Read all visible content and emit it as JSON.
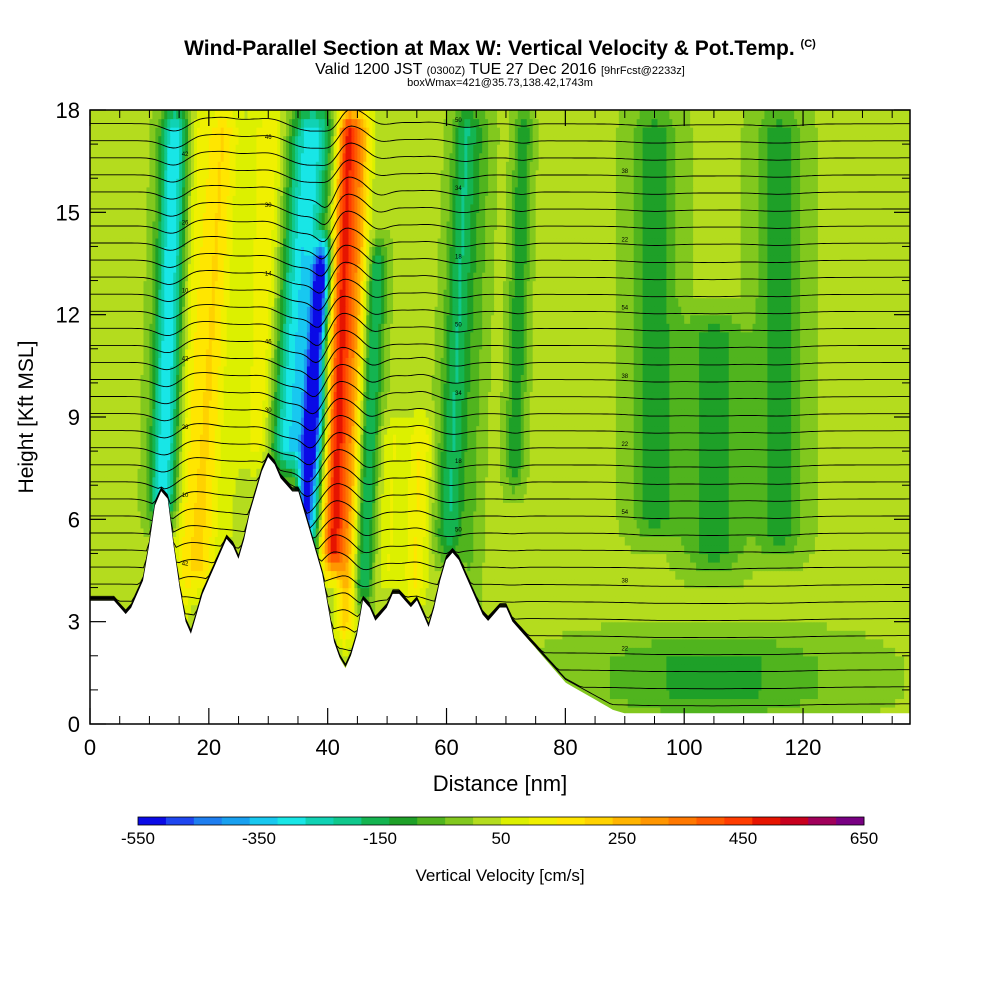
{
  "title": {
    "main": "Wind-Parallel Section at Max W: Vertical Velocity & Pot.Temp.",
    "main_suffix": "(C)",
    "line2_a": "Valid 1200 JST",
    "line2_b": "(0300Z)",
    "line2_c": "TUE 27 Dec 2016",
    "line2_d": "[9hrFcst@2233z]",
    "line3": "boxWmax=421@35.73,138.42,1743m"
  },
  "chart_data": {
    "type": "heatmap",
    "xlabel": "Distance [nm]",
    "ylabel": "Height [Kft MSL]",
    "xlim": [
      0,
      138
    ],
    "ylim": [
      0,
      18
    ],
    "x_ticks": [
      "0",
      "20",
      "40",
      "60",
      "80",
      "100",
      "120"
    ],
    "y_ticks": [
      "0",
      "3",
      "6",
      "9",
      "12",
      "15",
      "18"
    ],
    "colorbar": {
      "label": "Vertical Velocity [cm/s]",
      "tick_labels": [
        "-550",
        "-350",
        "-150",
        "50",
        "250",
        "450",
        "650"
      ],
      "min": -550,
      "max": 650,
      "step": 50,
      "colors": [
        "#0a0ae6",
        "#1e46f0",
        "#1e7ef0",
        "#18a0f0",
        "#18c8f0",
        "#18e6e6",
        "#10d2b4",
        "#10c88c",
        "#14b450",
        "#1ea028",
        "#50b41e",
        "#82c81e",
        "#b4dc1e",
        "#dcf000",
        "#f0f000",
        "#ffe600",
        "#ffd200",
        "#ffb400",
        "#ff9600",
        "#ff7800",
        "#ff5a00",
        "#ff3c00",
        "#e61400",
        "#c8001e",
        "#a0005a",
        "#780082"
      ]
    },
    "terrain_profile": {
      "x": [
        0,
        4,
        5,
        6,
        7,
        8,
        9,
        10,
        11,
        12,
        13,
        14,
        15,
        16,
        17,
        18,
        19,
        20,
        21,
        22,
        23,
        24,
        25,
        26,
        27,
        28,
        29,
        30,
        31,
        32,
        33,
        34,
        35,
        36,
        37,
        38,
        39,
        40,
        41,
        42,
        43,
        44,
        45,
        46,
        47,
        48,
        49,
        50,
        51,
        52,
        53,
        54,
        55,
        56,
        57,
        58,
        59,
        60,
        61,
        62,
        63,
        64,
        65,
        66,
        67,
        68,
        69,
        70,
        71,
        72,
        73,
        74,
        75,
        76,
        77,
        78,
        79,
        80,
        82,
        84,
        86,
        88,
        89,
        90,
        92,
        94,
        96,
        98,
        100,
        104,
        108,
        112,
        116,
        120,
        124,
        128,
        132,
        136,
        138
      ],
      "height": [
        3.6,
        3.6,
        3.4,
        3.2,
        3.4,
        3.8,
        4.2,
        5.2,
        6.4,
        6.8,
        6.6,
        5.2,
        4.0,
        3.0,
        2.6,
        3.2,
        3.8,
        4.2,
        4.6,
        5.0,
        5.4,
        5.2,
        4.8,
        5.4,
        6.2,
        6.8,
        7.4,
        7.8,
        7.6,
        7.2,
        7.0,
        6.8,
        6.8,
        6.2,
        5.6,
        5.0,
        4.4,
        3.4,
        2.4,
        1.9,
        1.6,
        2.0,
        2.6,
        3.6,
        3.4,
        3.0,
        3.2,
        3.4,
        3.8,
        3.8,
        3.6,
        3.4,
        3.6,
        3.2,
        2.8,
        3.4,
        4.2,
        4.8,
        5.0,
        4.8,
        4.4,
        4.0,
        3.6,
        3.2,
        3.0,
        3.2,
        3.4,
        3.4,
        3.0,
        2.8,
        2.6,
        2.4,
        2.2,
        2.0,
        1.8,
        1.6,
        1.4,
        1.2,
        1.0,
        0.8,
        0.6,
        0.4,
        0.35,
        0.3,
        0.3,
        0.3,
        0.3,
        0.3,
        0.3,
        0.3,
        0.3,
        0.3,
        0.3,
        0.3,
        0.3,
        0.3,
        0.3,
        0.3,
        0.3
      ]
    },
    "velocity_bands": [
      {
        "x": 12.5,
        "halfwidth": 2.2,
        "tilt": 0.18,
        "value": -300,
        "ymin": 6.0,
        "ymax": 18
      },
      {
        "x": 16.5,
        "halfwidth": 1.8,
        "tilt": 0.22,
        "value": 150,
        "ymin": 3.0,
        "ymax": 18
      },
      {
        "x": 19.5,
        "halfwidth": 2.6,
        "tilt": 0.3,
        "value": 250,
        "ymin": 4.0,
        "ymax": 18
      },
      {
        "x": 24.0,
        "halfwidth": 2.0,
        "tilt": 0.3,
        "value": 100,
        "ymin": 5.0,
        "ymax": 18
      },
      {
        "x": 28.5,
        "halfwidth": 2.5,
        "tilt": 0.2,
        "value": 200,
        "ymin": 7.5,
        "ymax": 18
      },
      {
        "x": 33.5,
        "halfwidth": 3.4,
        "tilt": 0.4,
        "value": -300,
        "ymin": 7.5,
        "ymax": 18
      },
      {
        "x": 36.8,
        "halfwidth": 1.4,
        "tilt": 0.4,
        "value": -500,
        "ymin": 5.5,
        "ymax": 14
      },
      {
        "x": 38.3,
        "halfwidth": 1.2,
        "tilt": 0.35,
        "value": -150,
        "ymin": 4.0,
        "ymax": 10
      },
      {
        "x": 41.5,
        "halfwidth": 1.8,
        "tilt": 0.2,
        "value": 550,
        "ymin": 4.5,
        "ymax": 18
      },
      {
        "x": 44.0,
        "halfwidth": 1.6,
        "tilt": 0.2,
        "value": 300,
        "ymin": 2.5,
        "ymax": 18
      },
      {
        "x": 47.0,
        "halfwidth": 1.6,
        "tilt": 0.25,
        "value": -150,
        "ymin": 3.5,
        "ymax": 14
      },
      {
        "x": 51.0,
        "halfwidth": 2.2,
        "tilt": 0.2,
        "value": 150,
        "ymin": 4.0,
        "ymax": 9
      },
      {
        "x": 55.5,
        "halfwidth": 2.0,
        "tilt": 0.2,
        "value": 200,
        "ymin": 3.5,
        "ymax": 9
      },
      {
        "x": 61.0,
        "halfwidth": 2.2,
        "tilt": 0.25,
        "value": -150,
        "ymin": 5.0,
        "ymax": 18
      },
      {
        "x": 64.5,
        "halfwidth": 1.8,
        "tilt": 0.2,
        "value": 0,
        "ymin": 3.0,
        "ymax": 18
      },
      {
        "x": 71.5,
        "halfwidth": 1.5,
        "tilt": 0.15,
        "value": -100,
        "ymin": 7.0,
        "ymax": 18
      },
      {
        "x": 95.0,
        "halfwidth": 4.0,
        "tilt": 0.0,
        "value": -80,
        "ymin": 5.5,
        "ymax": 18
      },
      {
        "x": 105.0,
        "halfwidth": 5.0,
        "tilt": 0.0,
        "value": -80,
        "ymin": 4.5,
        "ymax": 12
      },
      {
        "x": 116.0,
        "halfwidth": 4.0,
        "tilt": 0.0,
        "value": -80,
        "ymin": 5.0,
        "ymax": 18
      },
      {
        "x": 105.0,
        "halfwidth": 20.0,
        "tilt": 0.0,
        "value": -70,
        "ymin": 0.3,
        "ymax": 2.5
      }
    ],
    "isentropes": {
      "heights": [
        0.6,
        1.1,
        1.6,
        2.1,
        2.6,
        3.1,
        3.6,
        4.1,
        4.6,
        5.1,
        5.6,
        6.1,
        6.6,
        7.1,
        7.6,
        8.1,
        8.6,
        9.1,
        9.6,
        10.1,
        10.6,
        11.1,
        11.6,
        12.1,
        12.6,
        13.1,
        13.6,
        14.1,
        14.6,
        15.1,
        15.6,
        16.1,
        16.6,
        17.1,
        17.6
      ],
      "label_values": [
        "10",
        "14",
        "18",
        "22",
        "26",
        "30",
        "34",
        "38",
        "42",
        "46",
        "50",
        "54"
      ]
    }
  }
}
